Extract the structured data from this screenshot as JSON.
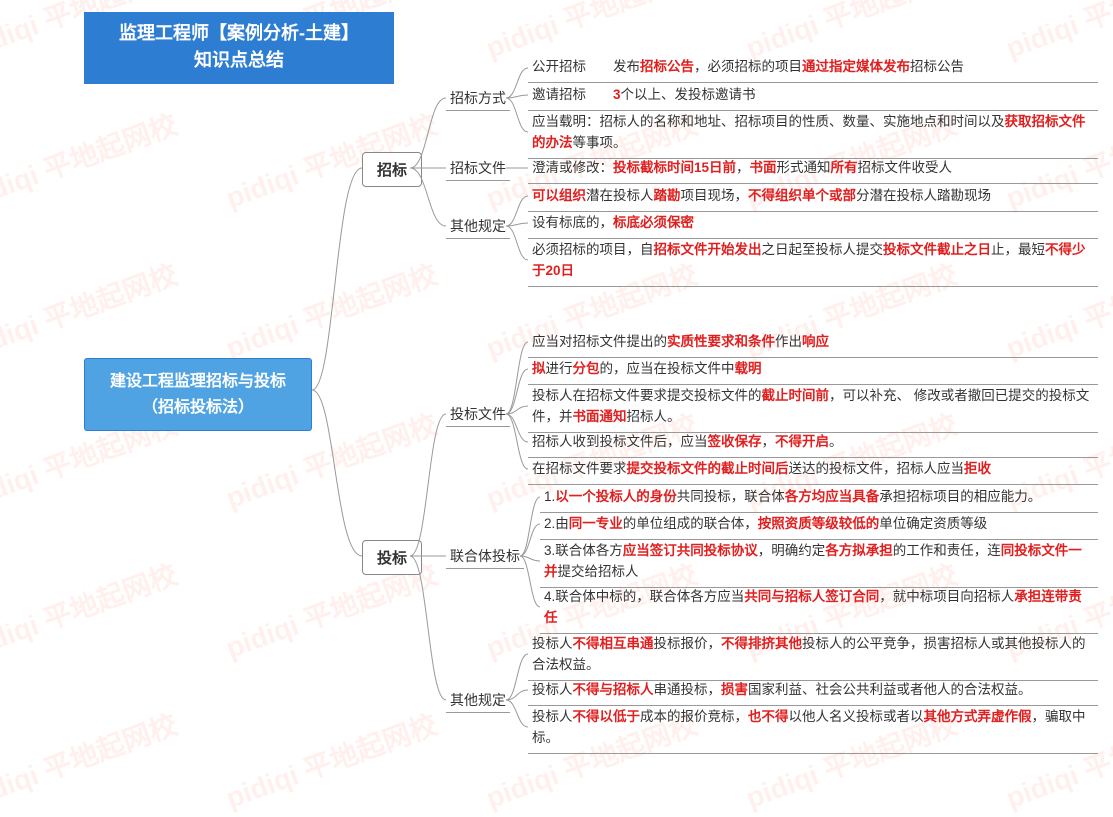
{
  "watermark_text": "pidiqi 平地起网校",
  "watermark_color": "rgba(255,60,30,0.08)",
  "colors": {
    "title_bg": "#2d7dd2",
    "root_bg": "#4fa3e3",
    "highlight": "#e02020",
    "line": "#999999",
    "text": "#333333"
  },
  "title": {
    "line1": "监理工程师【案例分析-土建】",
    "line2": "知识点总结"
  },
  "root": {
    "line1": "建设工程监理招标与投标",
    "line2": "（招标投标法）"
  },
  "branches": {
    "bid": {
      "label": "招标",
      "subs": {
        "method": {
          "label": "招标方式",
          "leaves": {
            "l1": {
              "plain0": "公开招标　　发布",
              "hl1": "招标公告",
              "plain1": "，必须招标的项目",
              "hl2": "通过指定媒体发布",
              "plain2": "招标公告"
            },
            "l2": {
              "plain0": "邀请招标　　",
              "hl1": "3",
              "plain1": "个以上、发投标邀请书"
            },
            "l3": {
              "plain0": "应当载明：招标人的名称和地址、招标项目的性质、数量、实施地点和时间以及",
              "hl1": "获取招标文件的办法",
              "plain1": "等事项。"
            }
          }
        },
        "doc": {
          "label": "招标文件",
          "leaves": {
            "l1": {
              "plain0": "澄清或修改：",
              "hl1": "投标截标时间15日前",
              "plain1": "，",
              "hl2": "书面",
              "plain2": "形式通知",
              "hl3": "所有",
              "plain3": "招标文件收受人"
            }
          }
        },
        "other": {
          "label": "其他规定",
          "leaves": {
            "l1": {
              "hl1": "可以组织",
              "plain0": "潜在投标人",
              "hl2": "踏勘",
              "plain1": "项目现场，",
              "hl3": "不得组织单个或部",
              "plain2": "分潜在投标人踏勘现场"
            },
            "l2": {
              "plain0": "设有标底的，",
              "hl1": "标底必须保密"
            },
            "l3": {
              "plain0": "必须招标的项目，自",
              "hl1": "招标文件开始发出",
              "plain1": "之日起至投标人提交",
              "hl2": "投标文件截止之日",
              "plain2": "止，最短",
              "hl3": "不得少于20日"
            }
          }
        }
      }
    },
    "tender": {
      "label": "投标",
      "subs": {
        "doc": {
          "label": "投标文件",
          "leaves": {
            "l1": {
              "plain0": "应当对招标文件提出的",
              "hl1": "实质性要求和条件",
              "plain1": "作出",
              "hl2": "响应"
            },
            "l2": {
              "hl1": "拟",
              "plain0": "进行",
              "hl2": "分包",
              "plain1": "的，应当在投标文件中",
              "hl3": "载明"
            },
            "l3": {
              "plain0": "投标人在招标文件要求提交投标文件的",
              "hl1": "截止时间前",
              "plain1": "，可以补充、 修改或者撤回已提交的投标文件，并",
              "hl2": "书面通知",
              "plain2": "招标人。"
            },
            "l4": {
              "plain0": "招标人收到投标文件后，应当",
              "hl1": "签收保存",
              "plain1": "，",
              "hl2": "不得开启",
              "plain2": "。"
            },
            "l5": {
              "plain0": "在招标文件要求",
              "hl1": "提交投标文件的截止时间后",
              "plain1": "送达的投标文件，招标人应当",
              "hl2": "拒收"
            }
          }
        },
        "union": {
          "label": "联合体投标",
          "leaves": {
            "l1": {
              "plain0": "1.",
              "hl1": "以一个投标人的身份",
              "plain1": "共同投标，联合体",
              "hl2": "各方均应当具备",
              "plain2": "承担招标项目的相应能力。"
            },
            "l2": {
              "plain0": "2.由",
              "hl1": "同一专业",
              "plain1": "的单位组成的联合体，",
              "hl2": "按照资质等级较低的",
              "plain2": "单位确定资质等级"
            },
            "l3": {
              "plain0": "3.联合体各方",
              "hl1": "应当签订共同投标协议",
              "plain1": "，明确约定",
              "hl2": "各方拟承担",
              "plain2": "的工作和责任，连",
              "hl3": "同投标文件一并",
              "plain3": "提交给招标人"
            },
            "l4": {
              "plain0": "4.联合体中标的，联合体各方应当",
              "hl1": "共同与招标人签订合同",
              "plain1": "，就中标项目向招标人",
              "hl2": "承担连带责任"
            }
          }
        },
        "other": {
          "label": "其他规定",
          "leaves": {
            "l1": {
              "plain0": "投标人",
              "hl1": "不得相互串通",
              "plain1": "投标报价，",
              "hl2": "不得排挤其他",
              "plain2": "投标人的公平竞争，损害招标人或其他投标人的合法权益。"
            },
            "l2": {
              "plain0": "投标人",
              "hl1": "不得与招标人",
              "plain1": "串通投标，",
              "hl2": "损害",
              "plain2": "国家利益、社会公共利益或者他人的合法权益。"
            },
            "l3": {
              "plain0": "投标人",
              "hl1": "不得以低于",
              "plain1": "成本的报价竞标，",
              "hl2": "也不得",
              "plain2": "以他人名义投标或者以",
              "hl3": "其他方式弄虚作假",
              "plain3": "，骗取中标。"
            }
          }
        }
      }
    }
  }
}
